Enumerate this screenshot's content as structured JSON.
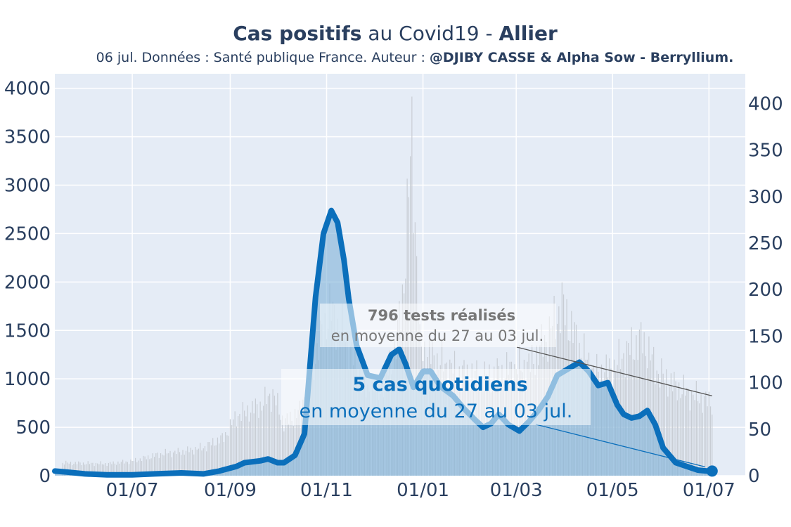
{
  "title": {
    "part1": "Cas positifs",
    "part2": " au Covid19 - ",
    "part3": "Allier"
  },
  "subtitle": {
    "normal": "06 jul. Données : Santé publique France. Auteur : ",
    "bold": "@DJIBY CASSE & Alpha Sow - Berryllium."
  },
  "annotations": {
    "tests_bold": "796 tests réalisés",
    "tests_sub": "en moyenne du 27 au 03 jul.",
    "cases_bold": "5 cas quotidiens",
    "cases_sub": "en moyenne du 27 au 03 jul."
  },
  "colors": {
    "plot_bg": "#e5ecf6",
    "grid": "#ffffff",
    "line": "#0b6fbb",
    "area": "#7fb3d9",
    "tests_bar": "#c8cdd4"
  },
  "chart_data": {
    "type": "line",
    "x_unit": "date",
    "x_range": [
      "2020-05-13",
      "2021-07-24"
    ],
    "x_ticks": [
      "2020-07-01",
      "2020-09-01",
      "2020-11-01",
      "2021-01-01",
      "2021-03-01",
      "2021-05-01",
      "2021-07-01"
    ],
    "x_tick_labels": [
      "01/07",
      "01/09",
      "01/11",
      "01/01",
      "01/03",
      "01/05",
      "01/07"
    ],
    "y_left": {
      "range": [
        0,
        4150
      ],
      "ticks": [
        0,
        500,
        1000,
        1500,
        2000,
        2500,
        3000,
        3500,
        4000
      ]
    },
    "y_right": {
      "range": [
        0,
        432
      ],
      "ticks": [
        0,
        50,
        100,
        150,
        200,
        250,
        300,
        350,
        400
      ]
    },
    "series": [
      {
        "kind": "tests_daily_bars",
        "axis": "left",
        "points": [
          [
            "2020-05-18",
            150
          ],
          [
            "2020-06-15",
            140
          ],
          [
            "2020-07-01",
            170
          ],
          [
            "2020-07-20",
            260
          ],
          [
            "2020-08-01",
            280
          ],
          [
            "2020-08-15",
            330
          ],
          [
            "2020-08-28",
            450
          ],
          [
            "2020-09-05",
            700
          ],
          [
            "2020-09-20",
            820
          ],
          [
            "2020-09-28",
            960
          ],
          [
            "2020-10-05",
            620
          ],
          [
            "2020-10-15",
            750
          ],
          [
            "2020-10-25",
            1400
          ],
          [
            "2020-11-03",
            1950
          ],
          [
            "2020-11-15",
            1550
          ],
          [
            "2020-11-25",
            1000
          ],
          [
            "2020-12-05",
            1000
          ],
          [
            "2020-12-15",
            1500
          ],
          [
            "2020-12-20",
            2300
          ],
          [
            "2020-12-25",
            4000
          ],
          [
            "2020-12-30",
            1500
          ],
          [
            "2021-01-10",
            1350
          ],
          [
            "2021-01-25",
            1200
          ],
          [
            "2021-02-10",
            1150
          ],
          [
            "2021-02-25",
            1250
          ],
          [
            "2021-03-10",
            1300
          ],
          [
            "2021-03-20",
            1600
          ],
          [
            "2021-03-30",
            2000
          ],
          [
            "2021-04-10",
            1500
          ],
          [
            "2021-04-20",
            1200
          ],
          [
            "2021-05-01",
            1250
          ],
          [
            "2021-05-10",
            1450
          ],
          [
            "2021-05-20",
            1600
          ],
          [
            "2021-05-30",
            1200
          ],
          [
            "2021-06-10",
            1050
          ],
          [
            "2021-06-20",
            950
          ],
          [
            "2021-07-03",
            850
          ]
        ]
      },
      {
        "kind": "cases_7day_average",
        "axis": "right",
        "points": [
          [
            "2020-05-13",
            5
          ],
          [
            "2020-05-20",
            4
          ],
          [
            "2020-06-01",
            2
          ],
          [
            "2020-06-15",
            1
          ],
          [
            "2020-07-01",
            1
          ],
          [
            "2020-07-15",
            2
          ],
          [
            "2020-08-01",
            3
          ],
          [
            "2020-08-15",
            2
          ],
          [
            "2020-08-25",
            5
          ],
          [
            "2020-09-05",
            10
          ],
          [
            "2020-09-10",
            14
          ],
          [
            "2020-09-20",
            16
          ],
          [
            "2020-09-25",
            18
          ],
          [
            "2020-10-01",
            14
          ],
          [
            "2020-10-05",
            14
          ],
          [
            "2020-10-12",
            22
          ],
          [
            "2020-10-18",
            45
          ],
          [
            "2020-10-25",
            192
          ],
          [
            "2020-10-30",
            260
          ],
          [
            "2020-11-04",
            285
          ],
          [
            "2020-11-08",
            272
          ],
          [
            "2020-11-12",
            232
          ],
          [
            "2020-11-15",
            190
          ],
          [
            "2020-11-20",
            140
          ],
          [
            "2020-11-27",
            108
          ],
          [
            "2020-12-05",
            105
          ],
          [
            "2020-12-12",
            130
          ],
          [
            "2020-12-17",
            136
          ],
          [
            "2020-12-21",
            120
          ],
          [
            "2020-12-26",
            95
          ],
          [
            "2021-01-01",
            112
          ],
          [
            "2021-01-06",
            112
          ],
          [
            "2021-01-12",
            96
          ],
          [
            "2021-01-20",
            86
          ],
          [
            "2021-01-27",
            72
          ],
          [
            "2021-02-03",
            60
          ],
          [
            "2021-02-08",
            52
          ],
          [
            "2021-02-13",
            56
          ],
          [
            "2021-02-18",
            66
          ],
          [
            "2021-02-24",
            55
          ],
          [
            "2021-03-03",
            48
          ],
          [
            "2021-03-09",
            58
          ],
          [
            "2021-03-15",
            70
          ],
          [
            "2021-03-21",
            85
          ],
          [
            "2021-03-27",
            108
          ],
          [
            "2021-04-04",
            116
          ],
          [
            "2021-04-10",
            122
          ],
          [
            "2021-04-16",
            112
          ],
          [
            "2021-04-22",
            97
          ],
          [
            "2021-04-28",
            100
          ],
          [
            "2021-05-04",
            76
          ],
          [
            "2021-05-08",
            66
          ],
          [
            "2021-05-13",
            62
          ],
          [
            "2021-05-18",
            64
          ],
          [
            "2021-05-23",
            70
          ],
          [
            "2021-05-28",
            55
          ],
          [
            "2021-06-02",
            30
          ],
          [
            "2021-06-10",
            14
          ],
          [
            "2021-06-17",
            10
          ],
          [
            "2021-06-24",
            6
          ],
          [
            "2021-06-30",
            5
          ],
          [
            "2021-07-03",
            5
          ]
        ]
      }
    ]
  }
}
